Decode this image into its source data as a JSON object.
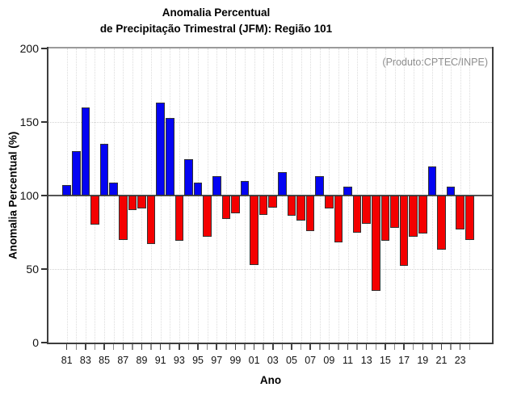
{
  "header": {
    "title_line1": "Anomalia Percentual",
    "title_line2": "de Precipitação Trimestral (JFM): Região 101"
  },
  "plot": {
    "annotation": "(Produto:CPTEC/INPE)"
  },
  "chart_data": {
    "type": "bar",
    "title": "Anomalia Percentual de Precipitação Trimestral (JFM): Região 101",
    "xlabel": "Ano",
    "ylabel": "Anomalia Percentual (%)",
    "ylim": [
      0,
      200
    ],
    "yticks": [
      0,
      50,
      100,
      150,
      200
    ],
    "hgridlines": [
      50,
      150
    ],
    "baseline": 100,
    "grid": "dotted",
    "legend": "none",
    "x_labeled_every": 2,
    "colors": {
      "above_baseline": "#0404f2",
      "below_baseline": "#f40000",
      "bar_outline": "#333333",
      "baseline_line": "#555555",
      "annotation_text": "#8e8e8e"
    },
    "categories": [
      "81",
      "82",
      "83",
      "84",
      "85",
      "86",
      "87",
      "88",
      "89",
      "90",
      "91",
      "92",
      "93",
      "94",
      "95",
      "96",
      "97",
      "98",
      "99",
      "00",
      "01",
      "02",
      "03",
      "04",
      "05",
      "06",
      "07",
      "08",
      "09",
      "10",
      "11",
      "12",
      "13",
      "14",
      "15",
      "16",
      "17",
      "18",
      "19",
      "20",
      "21",
      "22",
      "23",
      "24"
    ],
    "values": [
      107,
      130,
      160,
      80,
      135,
      109,
      70,
      90,
      91,
      67,
      163,
      153,
      69,
      125,
      109,
      72,
      113,
      84,
      88,
      110,
      53,
      87,
      92,
      116,
      86,
      83,
      76,
      113,
      91,
      68,
      106,
      75,
      81,
      35,
      69,
      78,
      52,
      72,
      74,
      120,
      63,
      106,
      77,
      70
    ]
  }
}
